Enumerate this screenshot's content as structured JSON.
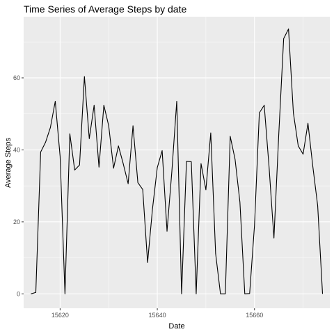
{
  "colors": {
    "panel": "#ebebeb",
    "grid_major": "#ffffff",
    "line": "#000000",
    "tick": "#333333",
    "tick_text": "#4d4d4d"
  },
  "chart_data": {
    "type": "line",
    "title": "Time Series of Average Steps by date",
    "xlabel": "Date",
    "ylabel": "Average Steps",
    "xlim": [
      15612.5,
      15675.5
    ],
    "ylim": [
      -4,
      77
    ],
    "x_ticks": [
      15620,
      15640,
      15660
    ],
    "x_tick_labels": [
      "15620",
      "15640",
      "15660"
    ],
    "y_ticks": [
      0,
      20,
      40,
      60
    ],
    "y_tick_labels": [
      "0",
      "20",
      "40",
      "60"
    ],
    "grid": true,
    "x": [
      15614,
      15615,
      15616,
      15617,
      15618,
      15619,
      15620,
      15621,
      15622,
      15623,
      15624,
      15625,
      15626,
      15627,
      15628,
      15629,
      15630,
      15631,
      15632,
      15633,
      15634,
      15635,
      15636,
      15637,
      15638,
      15639,
      15640,
      15641,
      15642,
      15643,
      15644,
      15645,
      15646,
      15647,
      15648,
      15649,
      15650,
      15651,
      15652,
      15653,
      15654,
      15655,
      15656,
      15657,
      15658,
      15659,
      15660,
      15661,
      15662,
      15663,
      15664,
      15665,
      15666,
      15667,
      15668,
      15669,
      15670,
      15671,
      15672,
      15673,
      15674
    ],
    "y": [
      0,
      0.4,
      39.4,
      42.1,
      46.2,
      53.5,
      38.2,
      0,
      44.5,
      34.4,
      35.8,
      60.4,
      43.1,
      52.4,
      35.2,
      52.4,
      46.7,
      34.9,
      41.1,
      36.1,
      30.6,
      46.7,
      30.9,
      29.0,
      8.7,
      23.5,
      35.1,
      39.8,
      17.4,
      34.1,
      53.5,
      0,
      36.8,
      36.7,
      0,
      36.2,
      28.9,
      44.7,
      11.2,
      0,
      0,
      43.8,
      37.4,
      25.5,
      0,
      0.1,
      19.0,
      50.3,
      52.4,
      35.2,
      15.5,
      44.5,
      70.9,
      73.6,
      50.3,
      41.1,
      38.8,
      47.4,
      35.4,
      24.5,
      0
    ]
  }
}
